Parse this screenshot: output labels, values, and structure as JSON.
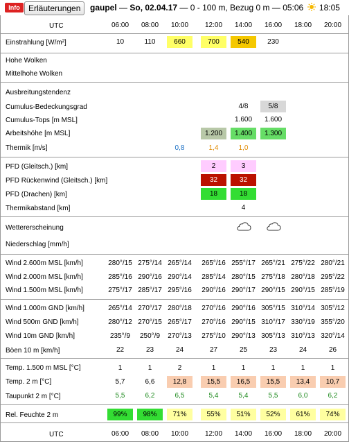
{
  "header": {
    "info_badge": "Info",
    "explain_button": "Erläuterungen",
    "location": "gaupel",
    "date": "So, 02.04.17",
    "range": "0 - 100 m, Bezug 0 m",
    "sunrise": "05:06",
    "sunset": "18:05"
  },
  "times": [
    "06:00",
    "08:00",
    "10:00",
    "12:00",
    "14:00",
    "16:00",
    "18:00",
    "20:00"
  ],
  "utc_label": "UTC",
  "colors": {
    "yellow": "#ffff66",
    "gold": "#f5c800",
    "grey": "#d8d8d8",
    "grey_dark": "#b8c8a8",
    "green": "#66dd66",
    "pink": "#ffccff",
    "darkred": "#bb1100",
    "salmon": "#f9cdb0",
    "lightyellow": "#ffffa0",
    "brightgreen": "#33dd33"
  },
  "rows": {
    "einstrahlung": {
      "label": "Einstrahlung [W/m²]",
      "values": [
        "10",
        "110",
        "660",
        "700",
        "540",
        "230",
        "",
        ""
      ]
    },
    "hohe_wolken": {
      "label": "Hohe Wolken"
    },
    "mittelhohe_wolken": {
      "label": "Mittelhohe Wolken"
    },
    "ausbreitung": {
      "label": "Ausbreitungstendenz"
    },
    "cumulus_grad": {
      "label": "Cumulus-Bedeckungsgrad",
      "values": [
        "",
        "",
        "",
        "",
        "4/8",
        "5/8",
        "",
        ""
      ]
    },
    "cumulus_tops": {
      "label": "Cumulus-Tops [m MSL]",
      "values": [
        "",
        "",
        "",
        "",
        "1.600",
        "1.600",
        "",
        ""
      ]
    },
    "arbeitshoehe": {
      "label": "Arbeitshöhe [m MSL]",
      "values": [
        "",
        "",
        "",
        "1.200",
        "1.400",
        "1.300",
        "",
        ""
      ]
    },
    "thermik": {
      "label": "Thermik [m/s]",
      "values": [
        "",
        "",
        "0,8",
        "1,4",
        "1,0",
        "",
        "",
        ""
      ]
    },
    "pfd_gleit": {
      "label": "PFD (Gleitsch.) [km]",
      "values": [
        "",
        "",
        "",
        "2",
        "3",
        "",
        "",
        ""
      ]
    },
    "pfd_rueck": {
      "label": "PFD Rückenwind (Gleitsch.) [km]",
      "values": [
        "",
        "",
        "",
        "32",
        "32",
        "",
        "",
        ""
      ]
    },
    "pfd_drachen": {
      "label": "PFD (Drachen) [km]",
      "values": [
        "",
        "",
        "",
        "18",
        "18",
        "",
        "",
        ""
      ]
    },
    "thermikabstand": {
      "label": "Thermikabstand [km]",
      "values": [
        "",
        "",
        "",
        "",
        "4",
        "",
        "",
        ""
      ]
    },
    "wetter": {
      "label": "Wettererscheinung",
      "icons": [
        "",
        "",
        "",
        "",
        "cloud-icon",
        "cloud-icon",
        "",
        ""
      ]
    },
    "niederschlag": {
      "label": "Niederschlag [mm/h]"
    },
    "wind_2600": {
      "label": "Wind 2.600m MSL [km/h]",
      "values": [
        "280°/15",
        "275°/14",
        "265°/14",
        "265°/16",
        "255°/17",
        "265°/21",
        "275°/22",
        "280°/21"
      ]
    },
    "wind_2000": {
      "label": "Wind 2.000m MSL [km/h]",
      "values": [
        "285°/16",
        "290°/16",
        "290°/14",
        "285°/14",
        "280°/15",
        "275°/18",
        "280°/18",
        "295°/22"
      ]
    },
    "wind_1500": {
      "label": "Wind 1.500m MSL [km/h]",
      "values": [
        "275°/17",
        "285°/17",
        "295°/16",
        "290°/16",
        "290°/17",
        "290°/15",
        "290°/15",
        "285°/19"
      ]
    },
    "wind_1000": {
      "label": "Wind 1.000m GND [km/h]",
      "values": [
        "265°/14",
        "270°/17",
        "280°/18",
        "270°/16",
        "290°/16",
        "305°/15",
        "310°/14",
        "305°/12"
      ]
    },
    "wind_500": {
      "label": "Wind 500m GND [km/h]",
      "values": [
        "280°/12",
        "270°/15",
        "265°/17",
        "270°/16",
        "290°/15",
        "310°/17",
        "330°/19",
        "355°/20"
      ]
    },
    "wind_10": {
      "label": "Wind 10m GND [km/h]",
      "values": [
        "235°/9",
        "250°/9",
        "270°/13",
        "275°/10",
        "290°/13",
        "305°/13",
        "310°/13",
        "320°/14"
      ]
    },
    "boeen": {
      "label": "Böen 10 m [km/h]",
      "values": [
        "22",
        "23",
        "24",
        "27",
        "25",
        "23",
        "24",
        "26"
      ]
    },
    "temp_1500": {
      "label": "Temp. 1.500 m MSL [°C]",
      "values": [
        "1",
        "1",
        "2",
        "1",
        "1",
        "1",
        "1",
        "1"
      ]
    },
    "temp_2m": {
      "label": "Temp. 2 m [°C]",
      "values": [
        "5,7",
        "6,6",
        "12,8",
        "15,5",
        "16,5",
        "15,5",
        "13,4",
        "10,7"
      ]
    },
    "taupunkt": {
      "label": "Taupunkt 2 m [°C]",
      "values": [
        "5,5",
        "6,2",
        "6,5",
        "5,4",
        "5,4",
        "5,5",
        "6,0",
        "6,2"
      ]
    },
    "feuchte": {
      "label": "Rel. Feuchte 2 m",
      "values": [
        "99%",
        "98%",
        "71%",
        "55%",
        "51%",
        "52%",
        "61%",
        "74%"
      ]
    }
  }
}
